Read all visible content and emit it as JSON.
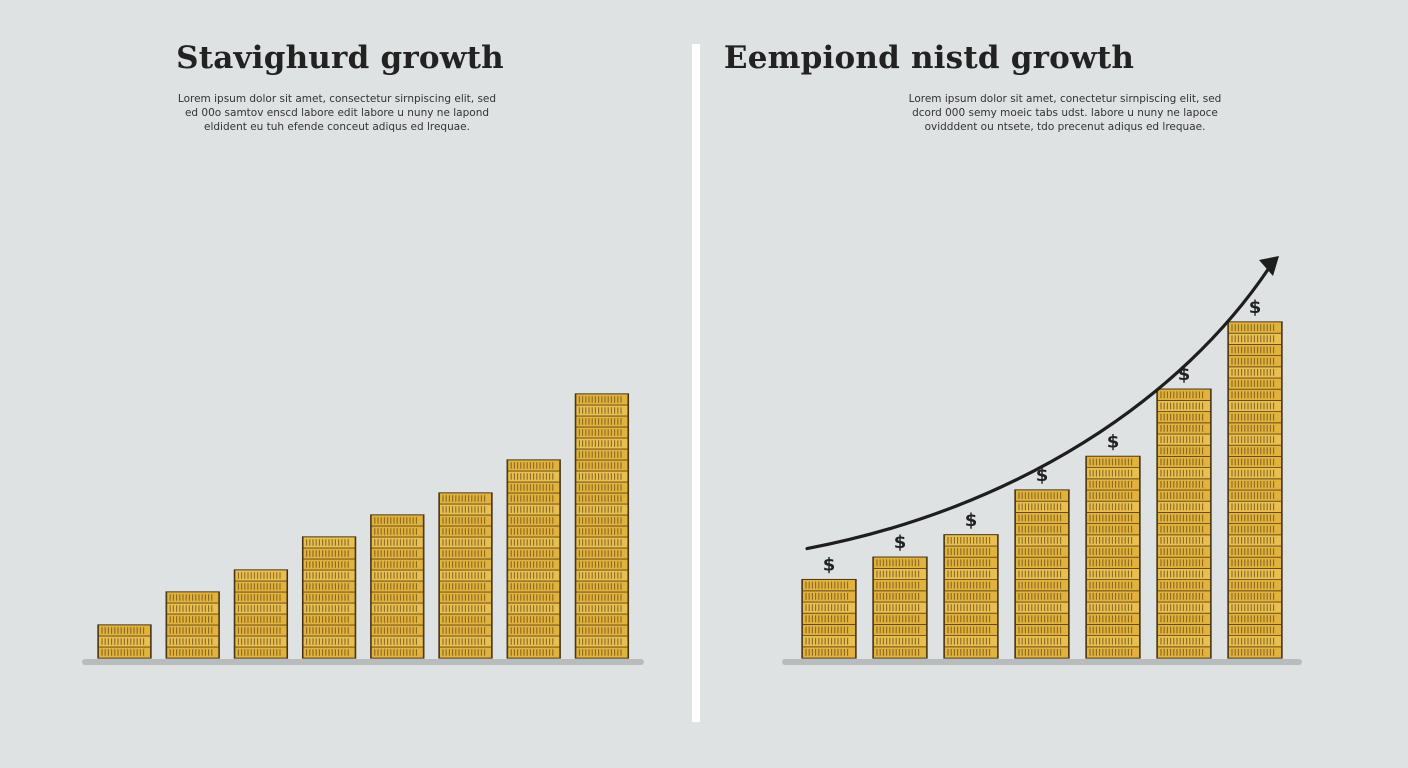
{
  "chart_data": [
    {
      "type": "bar",
      "title": "Stavighurd growth",
      "subtitle": "Lorem ipsum dolor sit amet, consectetur sirnpiscing elit, sed ed 00o samtov enscd labore edit labore u nuny ne lapond eldident eu tuh efende conceut adiqus ed lrequae.",
      "categories": [
        "",
        "",
        "",
        "",
        "",
        "",
        "",
        ""
      ],
      "values": [
        3,
        6,
        8,
        11,
        13,
        15,
        18,
        24
      ],
      "ylim": [
        0,
        26
      ],
      "bar_color": "#e2b33c",
      "coin_edge_color": "#7a5a22"
    },
    {
      "type": "bar",
      "title": "Eempiond nistd growth",
      "subtitle": "Lorem ipsum dolor sit amet, conectetur sirnpiscing elit, sed dcord 000 semy moeic tabs udst. labore u nuny ne lapoce ovidddent ou ntsete, tdo precenut adiqus ed lrequae.",
      "categories": [
        "",
        "",
        "",
        "",
        "",
        "",
        ""
      ],
      "values": [
        8,
        10,
        12,
        16,
        20,
        26,
        33
      ],
      "ylim": [
        0,
        36
      ],
      "bar_color": "#e2b33c",
      "coin_edge_color": "#7a5a22",
      "markers": [
        "$",
        "$",
        "$",
        "$",
        "$",
        "$",
        "$"
      ],
      "trend_arrow": true
    }
  ]
}
